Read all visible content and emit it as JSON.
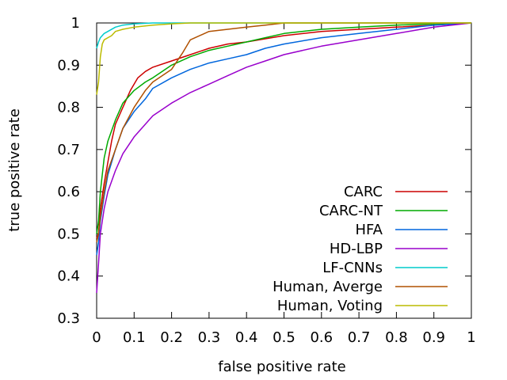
{
  "chart_data": {
    "type": "line",
    "title": "",
    "xlabel": "false positive rate",
    "ylabel": "true positive rate",
    "xlim": [
      0,
      1
    ],
    "ylim": [
      0.3,
      1
    ],
    "xticks": [
      "0",
      "0.1",
      "0.2",
      "0.3",
      "0.4",
      "0.5",
      "0.6",
      "0.7",
      "0.8",
      "0.9",
      "1"
    ],
    "yticks": [
      "0.3",
      "0.4",
      "0.5",
      "0.6",
      "0.7",
      "0.8",
      "0.9",
      "1"
    ],
    "grid": false,
    "legend_position": "bottom-right",
    "series": [
      {
        "name": "CARC",
        "color": "#cc0000",
        "points": [
          [
            0,
            0.49
          ],
          [
            0.005,
            0.5
          ],
          [
            0.01,
            0.56
          ],
          [
            0.02,
            0.62
          ],
          [
            0.03,
            0.67
          ],
          [
            0.04,
            0.72
          ],
          [
            0.05,
            0.76
          ],
          [
            0.07,
            0.8
          ],
          [
            0.09,
            0.84
          ],
          [
            0.11,
            0.87
          ],
          [
            0.13,
            0.885
          ],
          [
            0.15,
            0.895
          ],
          [
            0.2,
            0.91
          ],
          [
            0.25,
            0.925
          ],
          [
            0.3,
            0.94
          ],
          [
            0.35,
            0.95
          ],
          [
            0.4,
            0.955
          ],
          [
            0.5,
            0.97
          ],
          [
            0.6,
            0.98
          ],
          [
            0.7,
            0.985
          ],
          [
            0.8,
            0.99
          ],
          [
            0.9,
            0.995
          ],
          [
            1,
            1
          ]
        ]
      },
      {
        "name": "CARC-NT",
        "color": "#00aa00",
        "points": [
          [
            0,
            0.5
          ],
          [
            0.005,
            0.53
          ],
          [
            0.01,
            0.6
          ],
          [
            0.02,
            0.68
          ],
          [
            0.03,
            0.72
          ],
          [
            0.05,
            0.77
          ],
          [
            0.07,
            0.81
          ],
          [
            0.1,
            0.84
          ],
          [
            0.13,
            0.86
          ],
          [
            0.15,
            0.87
          ],
          [
            0.2,
            0.9
          ],
          [
            0.25,
            0.92
          ],
          [
            0.3,
            0.935
          ],
          [
            0.35,
            0.945
          ],
          [
            0.4,
            0.955
          ],
          [
            0.45,
            0.965
          ],
          [
            0.5,
            0.975
          ],
          [
            0.6,
            0.985
          ],
          [
            0.7,
            0.99
          ],
          [
            0.8,
            0.995
          ],
          [
            0.9,
            0.998
          ],
          [
            1,
            1
          ]
        ]
      },
      {
        "name": "HFA",
        "color": "#0066dd",
        "points": [
          [
            0,
            0.45
          ],
          [
            0.005,
            0.48
          ],
          [
            0.01,
            0.53
          ],
          [
            0.02,
            0.59
          ],
          [
            0.03,
            0.64
          ],
          [
            0.05,
            0.7
          ],
          [
            0.07,
            0.75
          ],
          [
            0.1,
            0.79
          ],
          [
            0.13,
            0.82
          ],
          [
            0.15,
            0.845
          ],
          [
            0.2,
            0.87
          ],
          [
            0.25,
            0.89
          ],
          [
            0.3,
            0.905
          ],
          [
            0.35,
            0.915
          ],
          [
            0.4,
            0.925
          ],
          [
            0.45,
            0.94
          ],
          [
            0.5,
            0.95
          ],
          [
            0.6,
            0.965
          ],
          [
            0.7,
            0.975
          ],
          [
            0.8,
            0.985
          ],
          [
            0.9,
            0.995
          ],
          [
            1,
            1
          ]
        ]
      },
      {
        "name": "HD-LBP",
        "color": "#9900cc",
        "points": [
          [
            0,
            0.36
          ],
          [
            0.005,
            0.43
          ],
          [
            0.01,
            0.5
          ],
          [
            0.02,
            0.56
          ],
          [
            0.03,
            0.6
          ],
          [
            0.05,
            0.65
          ],
          [
            0.07,
            0.69
          ],
          [
            0.1,
            0.73
          ],
          [
            0.13,
            0.76
          ],
          [
            0.15,
            0.78
          ],
          [
            0.2,
            0.81
          ],
          [
            0.25,
            0.835
          ],
          [
            0.3,
            0.855
          ],
          [
            0.35,
            0.875
          ],
          [
            0.4,
            0.895
          ],
          [
            0.45,
            0.91
          ],
          [
            0.5,
            0.925
          ],
          [
            0.6,
            0.945
          ],
          [
            0.7,
            0.96
          ],
          [
            0.8,
            0.975
          ],
          [
            0.9,
            0.99
          ],
          [
            1,
            1
          ]
        ]
      },
      {
        "name": "LF-CNNs",
        "color": "#00cccc",
        "points": [
          [
            0,
            0.94
          ],
          [
            0.005,
            0.955
          ],
          [
            0.01,
            0.965
          ],
          [
            0.02,
            0.975
          ],
          [
            0.03,
            0.98
          ],
          [
            0.05,
            0.99
          ],
          [
            0.07,
            0.995
          ],
          [
            0.1,
            0.998
          ],
          [
            0.15,
            1
          ],
          [
            1,
            1
          ]
        ]
      },
      {
        "name": "Human, Averge",
        "color": "#b05000",
        "points": [
          [
            0,
            0.48
          ],
          [
            0.005,
            0.5
          ],
          [
            0.01,
            0.54
          ],
          [
            0.02,
            0.6
          ],
          [
            0.03,
            0.65
          ],
          [
            0.05,
            0.7
          ],
          [
            0.07,
            0.75
          ],
          [
            0.1,
            0.8
          ],
          [
            0.13,
            0.84
          ],
          [
            0.15,
            0.86
          ],
          [
            0.2,
            0.89
          ],
          [
            0.23,
            0.93
          ],
          [
            0.25,
            0.96
          ],
          [
            0.3,
            0.98
          ],
          [
            0.35,
            0.985
          ],
          [
            0.4,
            0.99
          ],
          [
            0.45,
            0.995
          ],
          [
            0.5,
            1
          ],
          [
            1,
            1
          ]
        ]
      },
      {
        "name": "Human, Voting",
        "color": "#bbbb00",
        "points": [
          [
            0,
            0.83
          ],
          [
            0.005,
            0.86
          ],
          [
            0.01,
            0.92
          ],
          [
            0.015,
            0.95
          ],
          [
            0.02,
            0.96
          ],
          [
            0.03,
            0.965
          ],
          [
            0.04,
            0.97
          ],
          [
            0.05,
            0.98
          ],
          [
            0.07,
            0.985
          ],
          [
            0.1,
            0.99
          ],
          [
            0.15,
            0.995
          ],
          [
            0.2,
            0.998
          ],
          [
            0.25,
            1
          ],
          [
            1,
            1
          ]
        ]
      }
    ]
  }
}
